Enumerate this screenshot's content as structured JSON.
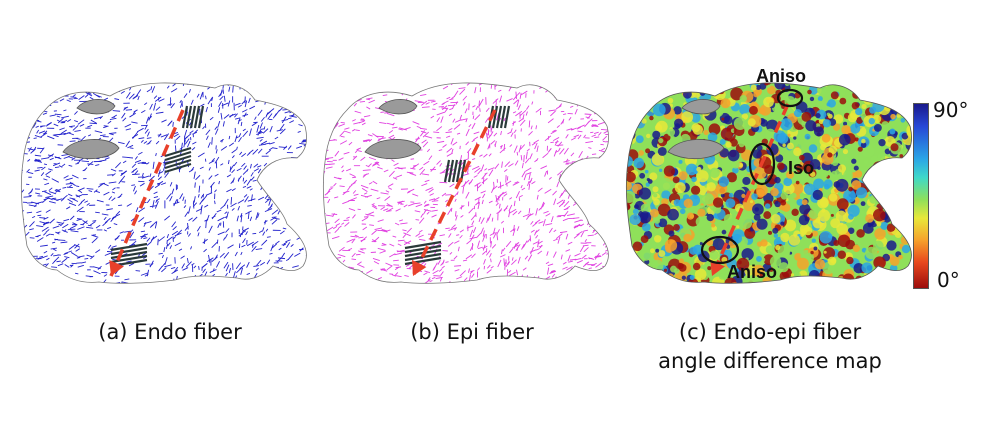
{
  "panels": [
    {
      "caption": "(a) Endo fiber",
      "fiber_color": "#2222cc"
    },
    {
      "caption": "(b) Epi fiber",
      "fiber_color": "#e040e0"
    },
    {
      "caption_line1": "(c) Endo-epi fiber",
      "caption_line2": "angle difference map"
    }
  ],
  "colorbar": {
    "max_label": "90°",
    "min_label": "0°",
    "colors": [
      "#1a1a8c",
      "#2aa6e6",
      "#8fe05a",
      "#e8e83a",
      "#f6a22c",
      "#9c0d0d"
    ]
  },
  "annotations": {
    "top": "Aniso",
    "middle": "Iso",
    "bottom": "Aniso"
  },
  "accent": {
    "arrow": "#e8402a",
    "mesh_gray": "#9a9a9a",
    "hatch": "#2a3a3a"
  }
}
